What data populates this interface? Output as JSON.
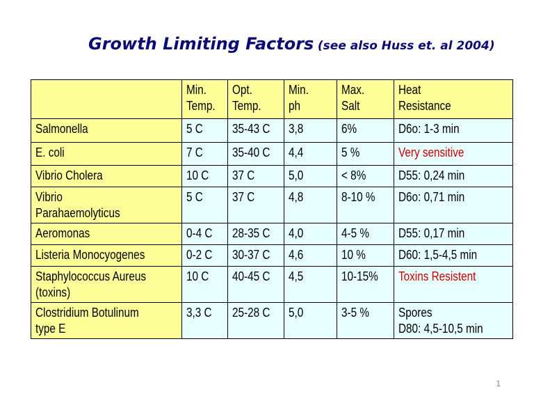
{
  "title": {
    "main": "Growth Limiting Factors",
    "sub": "(see also Huss et. al 2004)"
  },
  "table": {
    "headers": [
      "",
      "Min.\nTemp.",
      "Opt.\nTemp.",
      "Min.\nph",
      "Max.\nSalt",
      "Heat\nResistance"
    ],
    "rows": [
      {
        "name": "Salmonella",
        "cells": [
          "5 C",
          "35-43 C",
          "3,8",
          "6%",
          "D6o: 1-3 min"
        ],
        "heat_red": false
      },
      {
        "name": "E. coli",
        "cells": [
          "7 C",
          "35-40 C",
          "4,4",
          "5 %",
          "Very sensitive"
        ],
        "heat_red": true
      },
      {
        "name": "Vibrio Cholera",
        "cells": [
          "10 C",
          "37 C",
          "5,0",
          "< 8%",
          "D55: 0,24 min"
        ],
        "heat_red": false
      },
      {
        "name": "Vibrio\nParahaemolyticus",
        "cells": [
          "5 C",
          "37 C",
          "4,8",
          "8-10 %",
          "D6o: 0,71 min"
        ],
        "heat_red": false
      },
      {
        "name": "Aeromonas",
        "cells": [
          "0-4 C",
          "28-35 C",
          "4,0",
          "4-5 %",
          "D55: 0,17 min"
        ],
        "heat_red": false
      },
      {
        "name": "Listeria Monocyogenes",
        "cells": [
          "0-2 C",
          "30-37 C",
          "4,6",
          "10 %",
          "D60: 1,5-4,5 min"
        ],
        "heat_red": false
      },
      {
        "name": "Staphylococcus Aureus\n(toxins)",
        "cells": [
          "10 C",
          "40-45 C",
          "4,5",
          "10-15%",
          "Toxins Resistent"
        ],
        "heat_red": true
      },
      {
        "name": "Clostridium Botulinum\ntype E",
        "cells": [
          "3,3 C",
          "25-28 C",
          "5,0",
          "3-5 %",
          "Spores\nD80: 4,5-10,5 min"
        ],
        "heat_red": false
      }
    ]
  },
  "page_number": "1",
  "colors": {
    "title": "#0b0b78",
    "header_bg": "#ffff99",
    "value_bg": "#e8ffff",
    "alert_text": "#cc0000"
  }
}
